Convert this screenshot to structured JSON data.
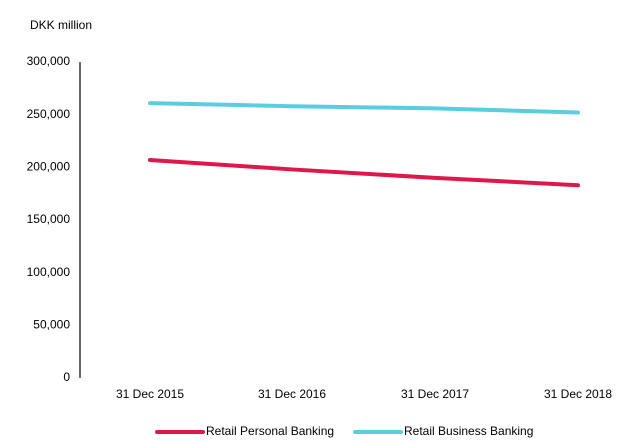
{
  "chart_data": {
    "type": "line",
    "y_label": "DKK million",
    "categories": [
      "31 Dec 2015",
      "31 Dec 2016",
      "31 Dec 2017",
      "31 Dec 2018"
    ],
    "series": [
      {
        "name": "Retail Personal Banking",
        "color": "#e0174a",
        "values": [
          207000,
          198000,
          190000,
          183000
        ]
      },
      {
        "name": "Retail Business Banking",
        "color": "#5bcde0",
        "values": [
          261000,
          258000,
          256000,
          252000
        ]
      }
    ],
    "ylim": [
      0,
      300000
    ],
    "yticks": [
      0,
      {
        "value": 50000,
        "label": "50,000"
      },
      {
        "value": 100000,
        "label": "100,000"
      },
      {
        "value": 150000,
        "label": "150,000"
      },
      {
        "value": 200000,
        "label": "200,000"
      },
      {
        "value": 250000,
        "label": "250,000"
      },
      {
        "value": 300000,
        "label": "300,000"
      }
    ],
    "grid": false,
    "legend": "bottom"
  }
}
